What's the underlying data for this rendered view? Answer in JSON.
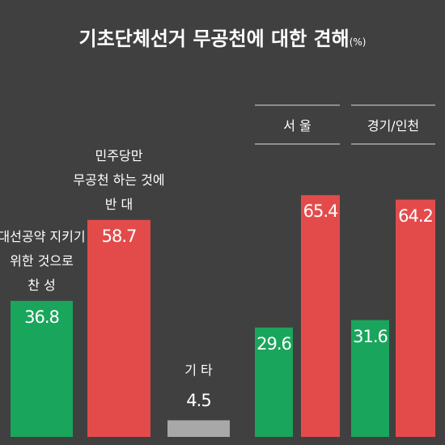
{
  "title": "기초단체선거 무공천에 대한 견해",
  "unit": "(%)",
  "chart_data": [
    {
      "type": "bar",
      "categories": [
        "대선공약 지키기\n위한 것으로\n찬 성",
        "민주당만\n무공천 하는 것에\n반 대",
        "기 타"
      ],
      "values": [
        36.8,
        58.7,
        4.5
      ],
      "colors": [
        "#1aa55c",
        "#e34b4b",
        "#a8a8a8"
      ],
      "ylim": [
        0,
        118.2
      ]
    },
    {
      "type": "bar",
      "title": "서 울",
      "values": [
        29.6,
        65.4
      ],
      "colors": [
        "#1aa55c",
        "#e34b4b"
      ],
      "ylim": [
        0,
        118.2
      ]
    },
    {
      "type": "bar",
      "title": "경기/인천",
      "values": [
        31.6,
        64.2
      ],
      "colors": [
        "#1aa55c",
        "#e34b4b"
      ],
      "ylim": [
        0,
        118.2
      ]
    }
  ]
}
